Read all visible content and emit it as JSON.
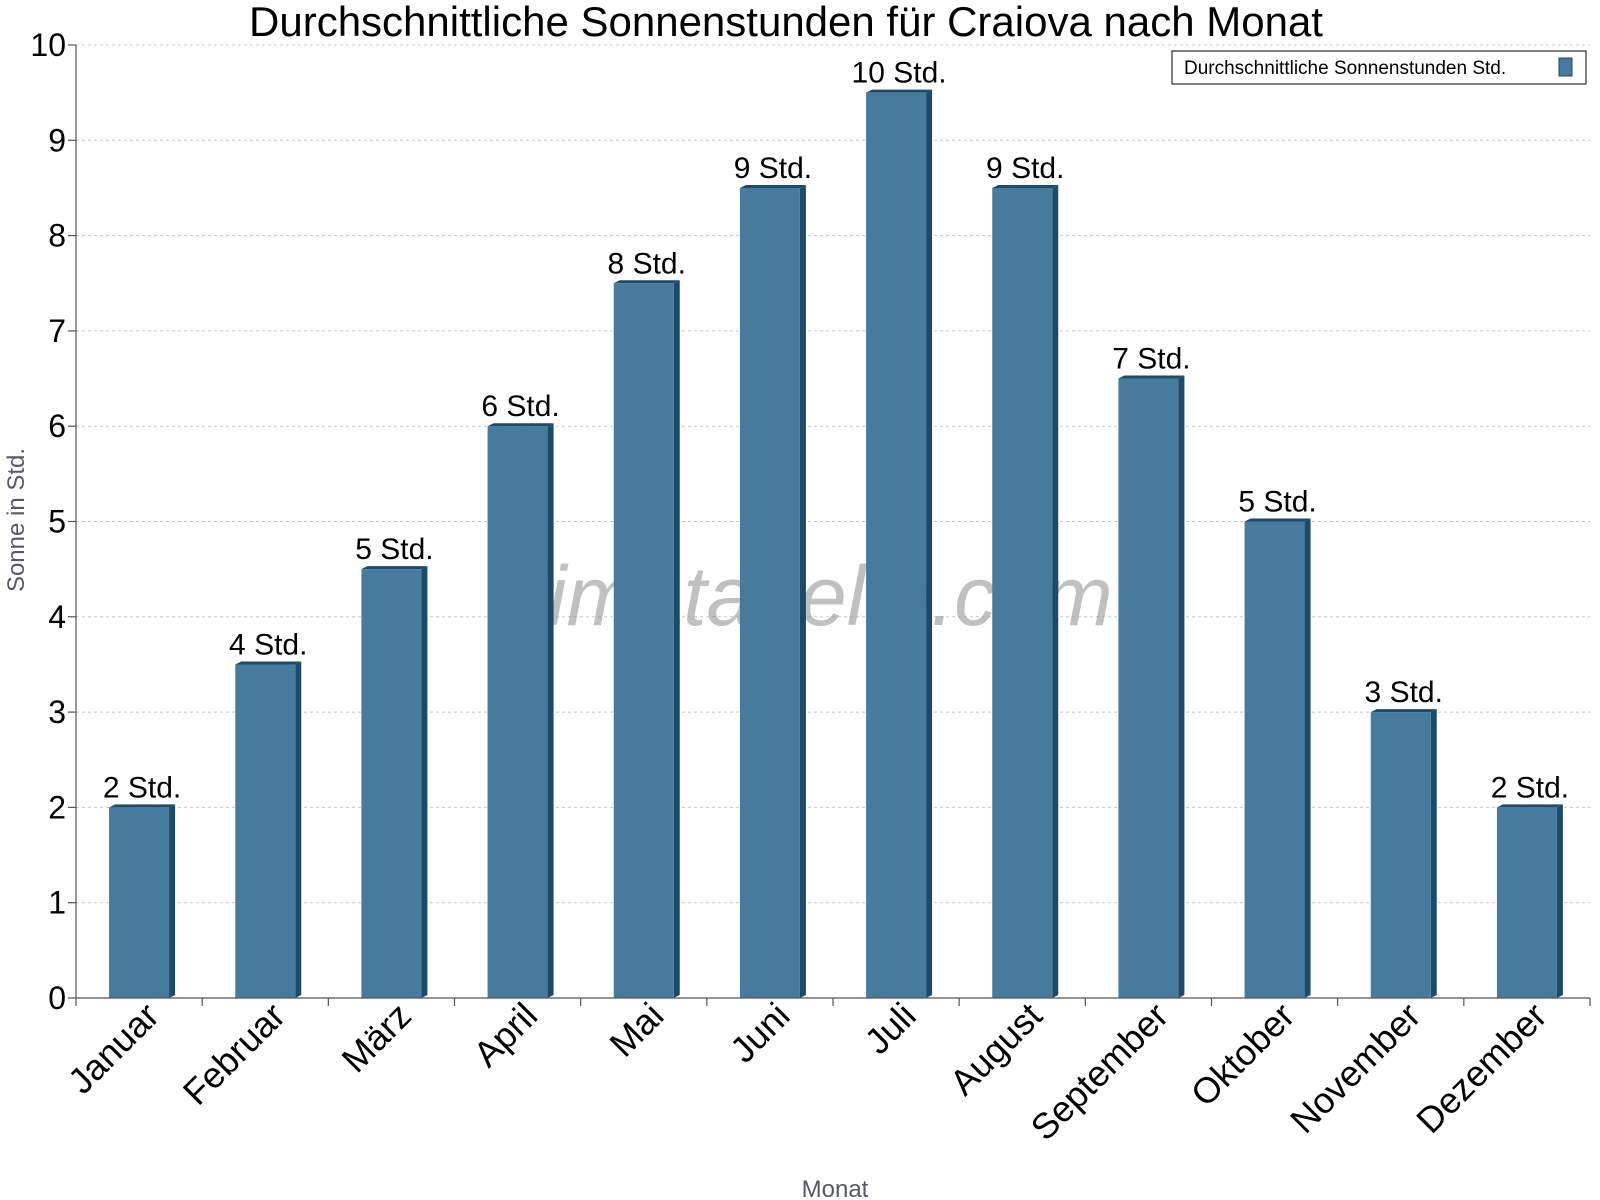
{
  "chart_data": {
    "type": "bar",
    "title": "Durchschnittliche Sonnenstunden für Craiova nach Monat",
    "xlabel": "Monat",
    "ylabel": "Sonne in Std.",
    "ylim": [
      0,
      10
    ],
    "yticks": [
      "0",
      "1",
      "2",
      "3",
      "4",
      "5",
      "6",
      "7",
      "8",
      "9",
      "10"
    ],
    "grid": true,
    "legend_position": "top-right",
    "categories": [
      "Januar",
      "Februar",
      "März",
      "April",
      "Mai",
      "Juni",
      "Juli",
      "August",
      "September",
      "Oktober",
      "November",
      "Dezember"
    ],
    "series": [
      {
        "name": "Durchschnittliche Sonnenstunden Std.",
        "color": "#467b9e",
        "side_color": "#1c4a6b",
        "values": [
          2,
          3.5,
          4.5,
          6,
          7.5,
          8.5,
          9.5,
          8.5,
          6.5,
          5,
          3,
          2
        ],
        "labels": [
          "2 Std.",
          "4 Std.",
          "5 Std.",
          "6 Std.",
          "8 Std.",
          "9 Std.",
          "10 Std.",
          "9 Std.",
          "7 Std.",
          "5 Std.",
          "3 Std.",
          "2 Std."
        ]
      }
    ],
    "watermark": "klimatabelle.com"
  }
}
